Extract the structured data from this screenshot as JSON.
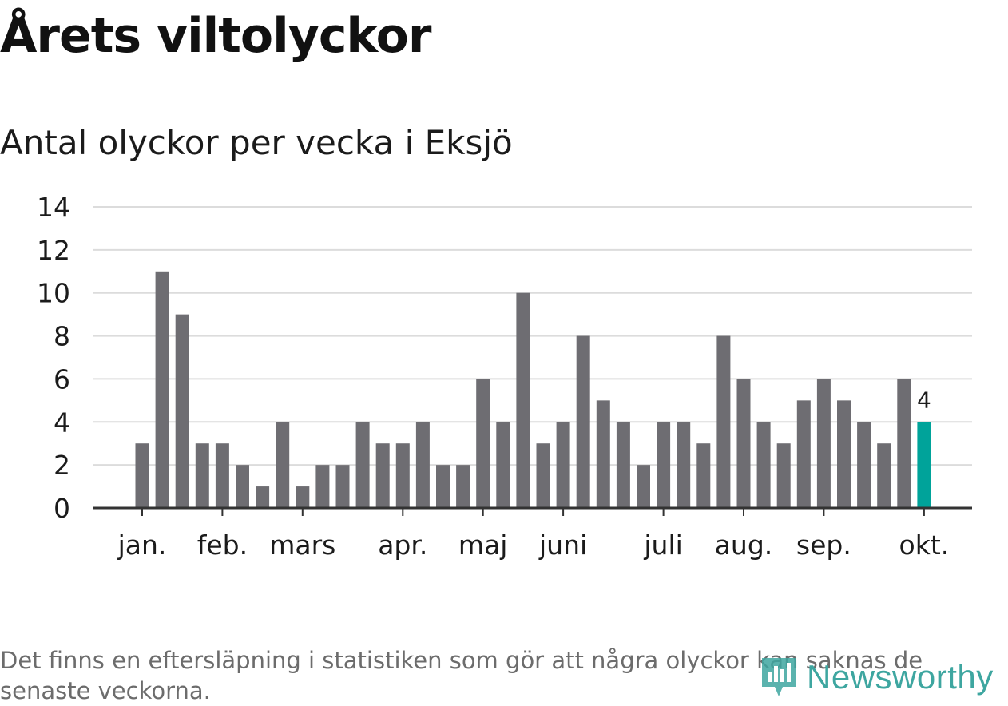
{
  "chart_data": {
    "type": "bar",
    "title": "Årets viltolyckor",
    "subtitle": "Antal olyckor per vecka i Eksjö",
    "xlabel": "",
    "ylabel": "",
    "ylim": [
      0,
      14
    ],
    "yticks": [
      "0",
      "2",
      "4",
      "6",
      "8",
      "10",
      "12",
      "14"
    ],
    "month_labels": [
      {
        "label": "jan.",
        "week": 1
      },
      {
        "label": "feb.",
        "week": 5
      },
      {
        "label": "mars",
        "week": 9
      },
      {
        "label": "apr.",
        "week": 14
      },
      {
        "label": "maj",
        "week": 18
      },
      {
        "label": "juni",
        "week": 22
      },
      {
        "label": "juli",
        "week": 27
      },
      {
        "label": "aug.",
        "week": 31
      },
      {
        "label": "sep.",
        "week": 35
      },
      {
        "label": "okt.",
        "week": 40
      }
    ],
    "weeks": [
      1,
      2,
      3,
      4,
      5,
      6,
      7,
      8,
      9,
      10,
      11,
      12,
      13,
      14,
      15,
      16,
      17,
      18,
      19,
      20,
      21,
      22,
      23,
      24,
      25,
      26,
      27,
      28,
      29,
      30,
      31,
      32,
      33,
      34,
      35,
      36,
      37,
      38,
      39,
      40
    ],
    "values": [
      3,
      11,
      9,
      3,
      3,
      2,
      1,
      4,
      1,
      2,
      2,
      4,
      3,
      3,
      4,
      2,
      2,
      6,
      4,
      10,
      3,
      4,
      8,
      5,
      4,
      2,
      4,
      4,
      3,
      8,
      6,
      4,
      3,
      5,
      6,
      5,
      4,
      3,
      6,
      4
    ],
    "highlight_index": 39,
    "highlight_label": "4",
    "bar_color": "#6e6d72",
    "highlight_color": "#00a39a",
    "grid": true
  },
  "footnote": "Det finns en eftersläpning i statistiken som gör att några olyckor kan saknas de senaste veckorna.",
  "brand": {
    "name": "Newsworthy",
    "icon": "newsworthy-logo-icon",
    "color": "#3ea6a0"
  }
}
